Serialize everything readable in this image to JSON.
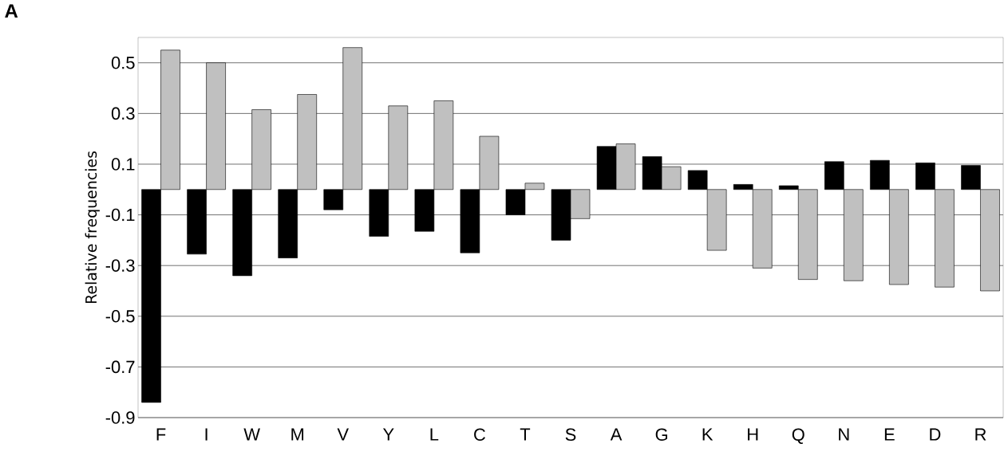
{
  "chart_data": {
    "type": "bar",
    "ylabel": "Relative frequencies",
    "annotations": [
      "A"
    ],
    "categories": [
      "F",
      "I",
      "W",
      "M",
      "V",
      "Y",
      "L",
      "C",
      "T",
      "S",
      "A",
      "G",
      "K",
      "H",
      "Q",
      "N",
      "E",
      "D",
      "R"
    ],
    "series": [
      {
        "color": "#000000",
        "values": [
          -0.84,
          -0.255,
          -0.34,
          -0.27,
          -0.08,
          -0.185,
          -0.165,
          -0.25,
          -0.1,
          -0.2,
          0.17,
          0.13,
          0.075,
          0.02,
          0.015,
          0.11,
          0.115,
          0.105,
          0.095
        ]
      },
      {
        "color": "#c0c0c0",
        "values": [
          0.55,
          0.5,
          0.315,
          0.375,
          0.56,
          0.33,
          0.35,
          0.21,
          0.025,
          -0.115,
          0.18,
          0.09,
          -0.24,
          -0.31,
          -0.355,
          -0.36,
          -0.375,
          -0.385,
          -0.4
        ]
      }
    ],
    "ylim": [
      -0.9,
      0.6
    ],
    "yticks": [
      -0.9,
      -0.7,
      -0.5,
      -0.3,
      -0.1,
      0.1,
      0.3,
      0.5
    ],
    "grid": "y"
  }
}
